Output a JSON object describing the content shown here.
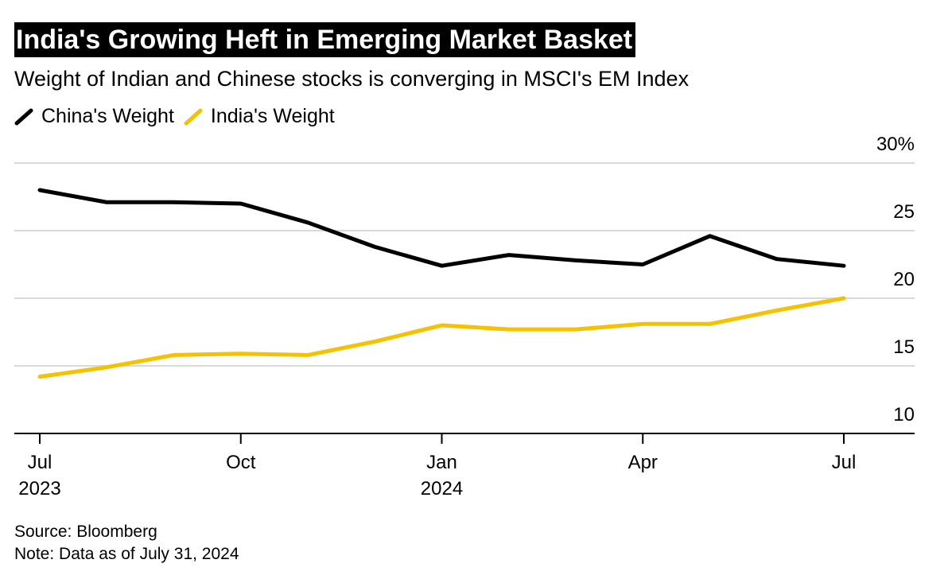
{
  "title": "India's Growing Heft in Emerging Market Basket",
  "subtitle": "Weight of Indian and Chinese stocks is converging in MSCI's EM Index",
  "source": "Source: Bloomberg",
  "note": "Note: Data as of July 31, 2024",
  "colors": {
    "china": "#000000",
    "india": "#f5c100",
    "grid": "#d9d9d9",
    "axis": "#000000"
  },
  "chart_data": {
    "type": "line",
    "x": [
      "2023-07",
      "2023-08",
      "2023-09",
      "2023-10",
      "2023-11",
      "2023-12",
      "2024-01",
      "2024-02",
      "2024-03",
      "2024-04",
      "2024-05",
      "2024-06",
      "2024-07"
    ],
    "series": [
      {
        "name": "China's Weight",
        "color": "#000000",
        "values": [
          28.0,
          27.1,
          27.1,
          27.0,
          25.6,
          23.8,
          22.4,
          23.2,
          22.8,
          22.5,
          24.6,
          22.9,
          22.4
        ]
      },
      {
        "name": "India's Weight",
        "color": "#f5c100",
        "values": [
          14.2,
          14.9,
          15.8,
          15.9,
          15.8,
          16.8,
          18.0,
          17.7,
          17.7,
          18.1,
          18.1,
          19.1,
          20.0
        ]
      }
    ],
    "ylim": [
      10,
      30
    ],
    "yticks": [
      "30%",
      "25",
      "20",
      "15",
      "10"
    ],
    "xticks": [
      {
        "label": "Jul",
        "sublabel": "2023",
        "index": 0
      },
      {
        "label": "Oct",
        "sublabel": "",
        "index": 3
      },
      {
        "label": "Jan",
        "sublabel": "2024",
        "index": 6
      },
      {
        "label": "Apr",
        "sublabel": "",
        "index": 9
      },
      {
        "label": "Jul",
        "sublabel": "",
        "index": 12
      }
    ],
    "grid": true,
    "legend": "top-left"
  }
}
